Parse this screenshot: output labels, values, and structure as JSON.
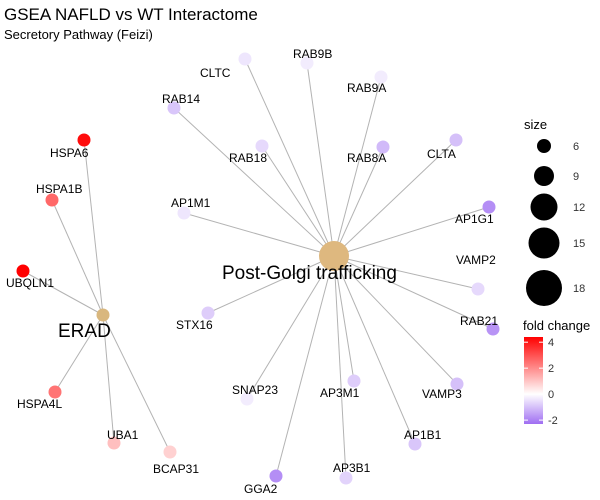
{
  "chart_data": {
    "type": "network",
    "title": "GSEA NAFLD vs WT Interactome",
    "subtitle": "Secretory Pathway (Feizi)",
    "hubs": [
      {
        "id": "erad",
        "label": "ERAD",
        "color": "#d9b77e"
      },
      {
        "id": "pgt",
        "label": "Post-Golgi trafficking",
        "color": "#deb87f"
      }
    ],
    "genes": [
      {
        "label": "HSPA6",
        "hub": "erad",
        "fold_change": 4.2
      },
      {
        "label": "HSPA1B",
        "hub": "erad",
        "fold_change": 2.6
      },
      {
        "label": "UBQLN1",
        "hub": "erad",
        "fold_change": 4.4
      },
      {
        "label": "HSPA4L",
        "hub": "erad",
        "fold_change": 2.4
      },
      {
        "label": "UBA1",
        "hub": "erad",
        "fold_change": 1.1
      },
      {
        "label": "BCAP31",
        "hub": "erad",
        "fold_change": 0.8
      },
      {
        "label": "CLTC",
        "hub": "pgt",
        "fold_change": -0.4
      },
      {
        "label": "RAB9B",
        "hub": "pgt",
        "fold_change": -0.3
      },
      {
        "label": "RAB9A",
        "hub": "pgt",
        "fold_change": -0.3
      },
      {
        "label": "RAB14",
        "hub": "pgt",
        "fold_change": -0.9
      },
      {
        "label": "RAB18",
        "hub": "pgt",
        "fold_change": -0.6
      },
      {
        "label": "RAB8A",
        "hub": "pgt",
        "fold_change": -1.1
      },
      {
        "label": "CLTA",
        "hub": "pgt",
        "fold_change": -1.0
      },
      {
        "label": "AP1M1",
        "hub": "pgt",
        "fold_change": -0.4
      },
      {
        "label": "AP1G1",
        "hub": "pgt",
        "fold_change": -1.8
      },
      {
        "label": "VAMP2",
        "hub": "pgt",
        "fold_change": -0.6
      },
      {
        "label": "STX16",
        "hub": "pgt",
        "fold_change": -0.8
      },
      {
        "label": "RAB21",
        "hub": "pgt",
        "fold_change": -1.7
      },
      {
        "label": "SNAP23",
        "hub": "pgt",
        "fold_change": -0.3
      },
      {
        "label": "AP3M1",
        "hub": "pgt",
        "fold_change": -0.8
      },
      {
        "label": "VAMP3",
        "hub": "pgt",
        "fold_change": -1.0
      },
      {
        "label": "AP1B1",
        "hub": "pgt",
        "fold_change": -0.9
      },
      {
        "label": "AP3B1",
        "hub": "pgt",
        "fold_change": -0.7
      },
      {
        "label": "GGA2",
        "hub": "pgt",
        "fold_change": -1.8
      }
    ],
    "legend_size": {
      "title": "size",
      "values": [
        6,
        9,
        12,
        15,
        18
      ],
      "placement": "right"
    },
    "legend_color": {
      "title": "fold change",
      "ticks": [
        4,
        2,
        0,
        -2
      ],
      "range": [
        -2.3,
        4.4
      ],
      "colors": {
        "high": "#ff0000",
        "mid": "#ffffff",
        "low": "#9f6ef2"
      },
      "placement": "right"
    },
    "grid": false
  }
}
